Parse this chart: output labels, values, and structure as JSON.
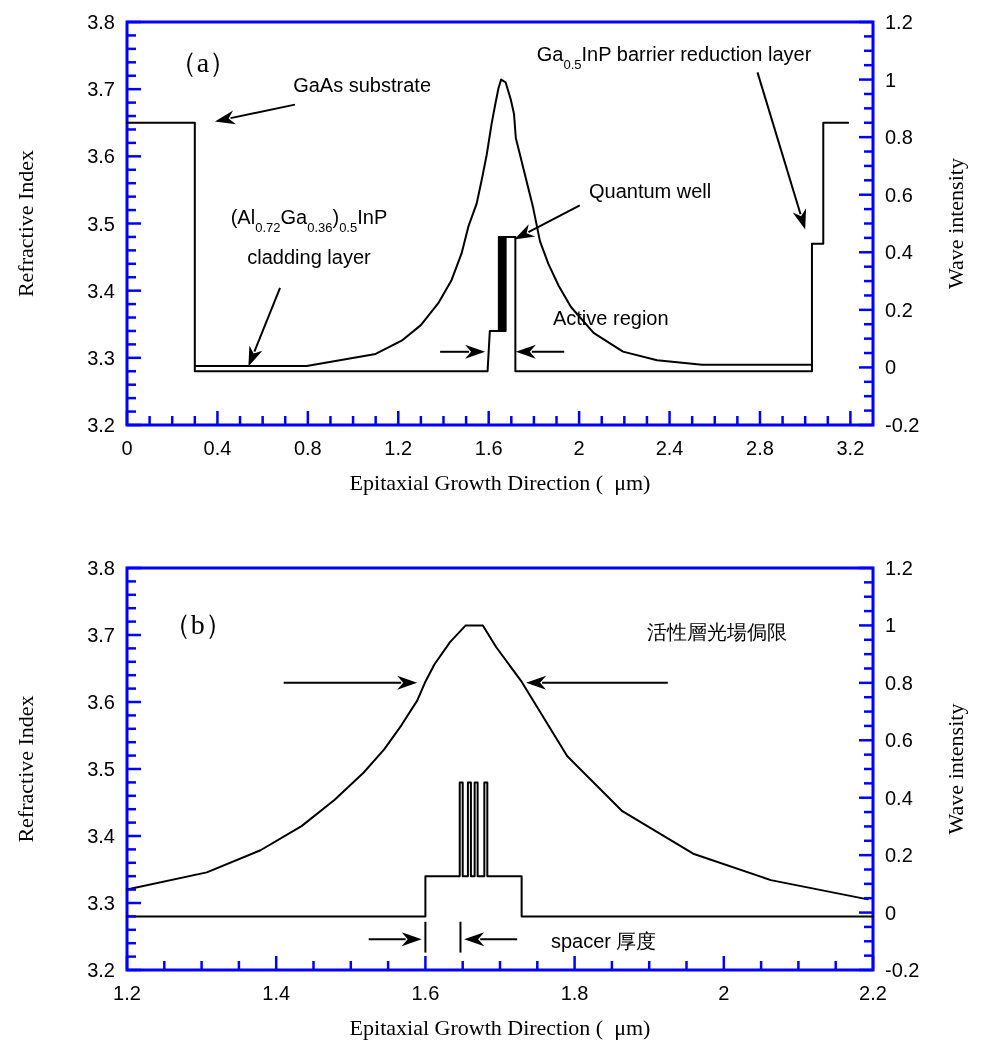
{
  "chart_data": [
    {
      "type": "line",
      "title": "（a）",
      "xlabel": "Epitaxial Growth Direction (  μm)",
      "ylabel": "Refractive Index",
      "y2label": "Wave intensity",
      "xlim": [
        0,
        3.3
      ],
      "ylim": [
        3.2,
        3.8
      ],
      "y2lim": [
        -0.2,
        1.2
      ],
      "xticks": [
        0,
        {
          "value": 0.1,
          "label": null
        },
        {
          "value": 0.2,
          "label": null
        },
        {
          "value": 0.3,
          "label": null
        },
        0.4,
        {
          "value": 0.5,
          "label": null
        },
        {
          "value": 0.6,
          "label": null
        },
        {
          "value": 0.7,
          "label": null
        },
        0.8,
        {
          "value": 0.9,
          "label": null
        },
        {
          "value": 1.0,
          "label": null
        },
        {
          "value": 1.1,
          "label": null
        },
        1.2,
        {
          "value": 1.3,
          "label": null
        },
        {
          "value": 1.4,
          "label": null
        },
        {
          "value": 1.5,
          "label": null
        },
        1.6,
        {
          "value": 1.7,
          "label": null
        },
        {
          "value": 1.8,
          "label": null
        },
        {
          "value": 1.9,
          "label": null
        },
        2,
        {
          "value": 2.1,
          "label": null
        },
        {
          "value": 2.2,
          "label": null
        },
        {
          "value": 2.3,
          "label": null
        },
        2.4,
        {
          "value": 2.5,
          "label": null
        },
        {
          "value": 2.6,
          "label": null
        },
        {
          "value": 2.7,
          "label": null
        },
        2.8,
        {
          "value": 2.9,
          "label": null
        },
        {
          "value": 3.0,
          "label": null
        },
        {
          "value": 3.1,
          "label": null
        },
        3.2
      ],
      "yticks": [
        3.2,
        {
          "value": 3.22,
          "label": null
        },
        {
          "value": 3.24,
          "label": null
        },
        {
          "value": 3.26,
          "label": null
        },
        {
          "value": 3.28,
          "label": null
        },
        3.3,
        {
          "value": 3.32,
          "label": null
        },
        {
          "value": 3.34,
          "label": null
        },
        {
          "value": 3.36,
          "label": null
        },
        {
          "value": 3.38,
          "label": null
        },
        3.4,
        {
          "value": 3.42,
          "label": null
        },
        {
          "value": 3.44,
          "label": null
        },
        {
          "value": 3.46,
          "label": null
        },
        {
          "value": 3.48,
          "label": null
        },
        3.5,
        {
          "value": 3.52,
          "label": null
        },
        {
          "value": 3.54,
          "label": null
        },
        {
          "value": 3.56,
          "label": null
        },
        {
          "value": 3.58,
          "label": null
        },
        3.6,
        {
          "value": 3.62,
          "label": null
        },
        {
          "value": 3.64,
          "label": null
        },
        {
          "value": 3.66,
          "label": null
        },
        {
          "value": 3.68,
          "label": null
        },
        3.7,
        {
          "value": 3.72,
          "label": null
        },
        {
          "value": 3.74,
          "label": null
        },
        {
          "value": 3.76,
          "label": null
        },
        {
          "value": 3.78,
          "label": null
        },
        3.8
      ],
      "y2ticks": [
        -0.2,
        {
          "value": -0.15,
          "label": null
        },
        {
          "value": -0.1,
          "label": null
        },
        {
          "value": -0.05,
          "label": null
        },
        0,
        {
          "value": 0.05,
          "label": null
        },
        {
          "value": 0.1,
          "label": null
        },
        {
          "value": 0.15,
          "label": null
        },
        0.2,
        {
          "value": 0.25,
          "label": null
        },
        {
          "value": 0.3,
          "label": null
        },
        {
          "value": 0.35,
          "label": null
        },
        0.4,
        {
          "value": 0.45,
          "label": null
        },
        {
          "value": 0.5,
          "label": null
        },
        {
          "value": 0.55,
          "label": null
        },
        0.6,
        {
          "value": 0.65,
          "label": null
        },
        {
          "value": 0.7,
          "label": null
        },
        {
          "value": 0.75,
          "label": null
        },
        0.8,
        {
          "value": 0.85,
          "label": null
        },
        {
          "value": 0.9,
          "label": null
        },
        {
          "value": 0.95,
          "label": null
        },
        1,
        {
          "value": 1.05,
          "label": null
        },
        {
          "value": 1.1,
          "label": null
        },
        {
          "value": 1.15,
          "label": null
        },
        1.2
      ],
      "grid": false,
      "marker": "none",
      "line_style": "solid",
      "series": [
        {
          "color": "#000000",
          "x": [
            0,
            0.3,
            0.3,
            1.595,
            1.605,
            1.645,
            1.645,
            1.65,
            1.65,
            1.655,
            1.655,
            1.66,
            1.66,
            1.665,
            1.665,
            1.67,
            1.67,
            1.675,
            1.675,
            1.718,
            1.718,
            3.03,
            3.03,
            3.08,
            3.08,
            3.19
          ],
          "values": [
            3.65,
            3.65,
            3.28,
            3.28,
            3.34,
            3.34,
            3.48,
            3.48,
            3.34,
            3.34,
            3.48,
            3.48,
            3.34,
            3.34,
            3.48,
            3.48,
            3.34,
            3.34,
            3.48,
            3.48,
            3.28,
            3.28,
            3.47,
            3.47,
            3.65,
            3.65
          ]
        },
        {
          "color": "#000000",
          "axis": "y2",
          "x": [
            0.3,
            0.795,
            1.1,
            1.215,
            1.3,
            1.377,
            1.436,
            1.48,
            1.51,
            1.547,
            1.569,
            1.591,
            1.613,
            1.628,
            1.643,
            1.655,
            1.675,
            1.698,
            1.712,
            1.72,
            1.758,
            1.796,
            1.827,
            1.864,
            1.91,
            1.964,
            2.064,
            2.194,
            2.345,
            2.544,
            3.03
          ],
          "values": [
            0.005,
            0.005,
            0.047,
            0.093,
            0.147,
            0.223,
            0.304,
            0.396,
            0.489,
            0.57,
            0.651,
            0.738,
            0.847,
            0.91,
            0.969,
            1.0,
            0.99,
            0.93,
            0.88,
            0.797,
            0.677,
            0.557,
            0.438,
            0.36,
            0.283,
            0.21,
            0.12,
            0.055,
            0.025,
            0.009,
            0.009
          ]
        }
      ],
      "annotations": [
        "GaAs substrate",
        "(Al$_{0.72}$Ga$_{0.36}$)$_{0.5}$InP",
        "cladding layer",
        "Quantum well",
        "Active region",
        "Ga$_{0.5}$InP barrier reduction layer"
      ]
    },
    {
      "type": "line",
      "title": "（b）",
      "xlabel": "Epitaxial Growth Direction (  μm)",
      "ylabel": "Refractive Index",
      "y2label": "Wave intensity",
      "xlim": [
        1.2,
        2.2
      ],
      "ylim": [
        3.2,
        3.8
      ],
      "y2lim": [
        -0.2,
        1.2
      ],
      "xticks": [
        1.2,
        {
          "value": 1.25,
          "label": null
        },
        {
          "value": 1.3,
          "label": null
        },
        {
          "value": 1.35,
          "label": null
        },
        1.4,
        {
          "value": 1.45,
          "label": null
        },
        {
          "value": 1.5,
          "label": null
        },
        {
          "value": 1.55,
          "label": null
        },
        1.6,
        {
          "value": 1.65,
          "label": null
        },
        {
          "value": 1.7,
          "label": null
        },
        {
          "value": 1.75,
          "label": null
        },
        1.8,
        {
          "value": 1.85,
          "label": null
        },
        {
          "value": 1.9,
          "label": null
        },
        {
          "value": 1.95,
          "label": null
        },
        2,
        {
          "value": 2.05,
          "label": null
        },
        {
          "value": 2.1,
          "label": null
        },
        {
          "value": 2.15,
          "label": null
        },
        2.2
      ],
      "yticks": [
        3.2,
        {
          "value": 3.22,
          "label": null
        },
        {
          "value": 3.24,
          "label": null
        },
        {
          "value": 3.26,
          "label": null
        },
        {
          "value": 3.28,
          "label": null
        },
        3.3,
        {
          "value": 3.32,
          "label": null
        },
        {
          "value": 3.34,
          "label": null
        },
        {
          "value": 3.36,
          "label": null
        },
        {
          "value": 3.38,
          "label": null
        },
        3.4,
        {
          "value": 3.42,
          "label": null
        },
        {
          "value": 3.44,
          "label": null
        },
        {
          "value": 3.46,
          "label": null
        },
        {
          "value": 3.48,
          "label": null
        },
        3.5,
        {
          "value": 3.52,
          "label": null
        },
        {
          "value": 3.54,
          "label": null
        },
        {
          "value": 3.56,
          "label": null
        },
        {
          "value": 3.58,
          "label": null
        },
        3.6,
        {
          "value": 3.62,
          "label": null
        },
        {
          "value": 3.64,
          "label": null
        },
        {
          "value": 3.66,
          "label": null
        },
        {
          "value": 3.68,
          "label": null
        },
        3.7,
        {
          "value": 3.72,
          "label": null
        },
        {
          "value": 3.74,
          "label": null
        },
        {
          "value": 3.76,
          "label": null
        },
        {
          "value": 3.78,
          "label": null
        },
        3.8
      ],
      "y2ticks": [
        -0.2,
        {
          "value": -0.15,
          "label": null
        },
        {
          "value": -0.1,
          "label": null
        },
        {
          "value": -0.05,
          "label": null
        },
        0,
        {
          "value": 0.05,
          "label": null
        },
        {
          "value": 0.1,
          "label": null
        },
        {
          "value": 0.15,
          "label": null
        },
        0.2,
        {
          "value": 0.25,
          "label": null
        },
        {
          "value": 0.3,
          "label": null
        },
        {
          "value": 0.35,
          "label": null
        },
        0.4,
        {
          "value": 0.45,
          "label": null
        },
        {
          "value": 0.5,
          "label": null
        },
        {
          "value": 0.55,
          "label": null
        },
        0.6,
        {
          "value": 0.65,
          "label": null
        },
        {
          "value": 0.7,
          "label": null
        },
        {
          "value": 0.75,
          "label": null
        },
        0.8,
        {
          "value": 0.85,
          "label": null
        },
        {
          "value": 0.9,
          "label": null
        },
        {
          "value": 0.95,
          "label": null
        },
        1,
        {
          "value": 1.05,
          "label": null
        },
        {
          "value": 1.1,
          "label": null
        },
        {
          "value": 1.15,
          "label": null
        },
        1.2
      ],
      "grid": false,
      "marker": "none",
      "line_style": "solid",
      "series": [
        {
          "color": "#000000",
          "x": [
            1.2,
            1.6,
            1.6,
            1.646,
            1.646,
            1.65,
            1.65,
            1.657,
            1.657,
            1.661,
            1.661,
            1.666,
            1.666,
            1.67,
            1.67,
            1.679,
            1.679,
            1.683,
            1.683,
            1.729,
            1.729,
            2.2
          ],
          "values": [
            3.28,
            3.28,
            3.34,
            3.34,
            3.48,
            3.48,
            3.34,
            3.34,
            3.48,
            3.48,
            3.34,
            3.34,
            3.48,
            3.48,
            3.34,
            3.34,
            3.48,
            3.48,
            3.34,
            3.34,
            3.28,
            3.28
          ]
        },
        {
          "color": "#000000",
          "axis": "y2",
          "x": [
            1.2,
            1.307,
            1.379,
            1.434,
            1.478,
            1.517,
            1.545,
            1.568,
            1.589,
            1.6,
            1.612,
            1.633,
            1.654,
            1.677,
            1.695,
            1.729,
            1.79,
            1.864,
            1.959,
            2.063,
            2.193
          ],
          "values": [
            0.08,
            0.14,
            0.217,
            0.301,
            0.392,
            0.487,
            0.569,
            0.653,
            0.738,
            0.804,
            0.864,
            0.942,
            1.0,
            1.0,
            0.924,
            0.804,
            0.545,
            0.353,
            0.205,
            0.113,
            0.046
          ]
        }
      ],
      "annotations": [
        "活性層光場侷限",
        "spacer 厚度"
      ]
    }
  ]
}
